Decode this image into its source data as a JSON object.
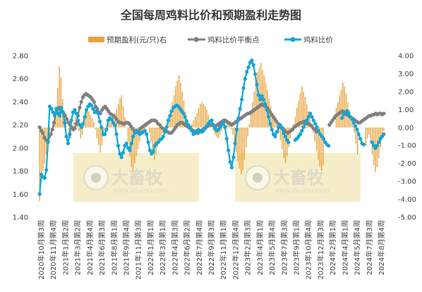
{
  "chart_data": {
    "type": "line",
    "title": "全国每周鸡料比价和预期盈利走势图",
    "watermark": {
      "brand": "大畜牧",
      "url": "www.dxumu.com"
    },
    "y_left": {
      "min": 1.4,
      "max": 2.8,
      "step": 0.2,
      "tick_labels": [
        "1.40",
        "1.60",
        "1.80",
        "2.00",
        "2.20",
        "2.40",
        "2.60",
        "2.80"
      ]
    },
    "y_right": {
      "min": -5.0,
      "max": 4.0,
      "step": 1.0,
      "tick_labels": [
        "-5.00",
        "-4.00",
        "-3.00",
        "-2.00",
        "-1.00",
        "0.00",
        "1.00",
        "2.00",
        "3.00",
        "4.00"
      ]
    },
    "x_labels": [
      "2020年10月第3周",
      "2020年11月第4周",
      "2021年1月第2周",
      "2021年3月第2周",
      "2021年4月第4周",
      "2021年6月第3周",
      "2021年8月第1周",
      "2021年9月第4周",
      "2021年11月第3周",
      "2022年1月第1周",
      "2022年3月第1周",
      "2022年4月第3周",
      "2022年6月第2周",
      "2022年7月第4周",
      "2022年9月第3周",
      "2022年11月第1周",
      "2022年12月第4周",
      "2023年2月第3周",
      "2023年4月第1周",
      "2023年5月第4周",
      "2023年7月第3周",
      "2023年9月第1周",
      "2023年10月第4周",
      "2023年12月第3周",
      "2024年2月第1周",
      "2024年4月第1周",
      "2024年5月第4周",
      "2024年7月第3周",
      "2024年8月第4周"
    ],
    "series": [
      {
        "name": "预期盈利(元/只)右",
        "type": "bar",
        "axis": "right",
        "color": "#E8A33C",
        "values": [
          -4.1,
          -3.0,
          -2.4,
          -2.0,
          -1.5,
          -1.0,
          -0.8,
          -0.3,
          0.3,
          0.8,
          1.2,
          2.2,
          3.4,
          2.8,
          1.6,
          0.8,
          0.4,
          0.0,
          -0.4,
          -0.6,
          -0.2,
          0.3,
          0.6,
          0.4,
          -0.2,
          -0.6,
          -0.4,
          0.1,
          0.7,
          1.2,
          0.9,
          0.7,
          0.5,
          0.3,
          -0.1,
          -0.6,
          -1.0,
          -1.4,
          -1.0,
          -0.5,
          -0.2,
          0.1,
          0.3,
          0.4,
          0.5,
          0.6,
          0.8,
          1.0,
          1.3,
          1.6,
          1.8,
          1.2,
          0.6,
          0.0,
          -0.8,
          -1.6,
          -2.2,
          -2.4,
          -2.0,
          -1.6,
          -1.2,
          -0.8,
          -0.4,
          -0.2,
          -0.1,
          0.1,
          0.0,
          -0.3,
          -0.8,
          -1.4,
          -1.8,
          -1.5,
          -1.1,
          -0.8,
          -0.5,
          -0.3,
          -0.1,
          0.1,
          0.3,
          0.6,
          1.0,
          1.4,
          1.8,
          2.3,
          2.6,
          2.9,
          2.5,
          2.0,
          1.5,
          0.9,
          0.5,
          0.2,
          0.1,
          0.2,
          0.4,
          0.6,
          0.8,
          1.1,
          1.3,
          1.4,
          1.3,
          1.2,
          1.0,
          0.7,
          0.4,
          0.1,
          -0.2,
          -0.4,
          -0.5,
          -0.6,
          -0.4,
          -0.2,
          0.0,
          0.2,
          0.4,
          0.3,
          0.1,
          -0.1,
          -0.4,
          -0.8,
          -1.4,
          -1.9,
          -2.3,
          -2.6,
          -2.4,
          -1.8,
          -1.1,
          -0.5,
          0.2,
          0.8,
          1.4,
          2.0,
          2.6,
          3.1,
          3.3,
          3.6,
          3.2,
          2.9,
          2.5,
          2.1,
          1.6,
          1.2,
          0.8,
          0.4,
          0.2,
          0.0,
          -0.3,
          -0.7,
          -1.2,
          -1.7,
          -2.0,
          -1.6,
          -1.1,
          -0.6,
          -0.2,
          0.2,
          0.6,
          1.1,
          1.5,
          1.9,
          2.3,
          2.0,
          1.7,
          1.3,
          0.9,
          0.5,
          0.1,
          -0.3,
          -0.8,
          -1.3,
          -1.8,
          -2.2,
          -2.4,
          -2.1,
          -1.6,
          -1.1,
          -0.6,
          -0.2,
          0.2,
          0.5,
          0.8,
          1.1,
          1.4,
          1.8,
          2.1,
          2.5,
          2.3,
          1.9,
          1.4,
          1.0,
          0.6,
          0.2,
          -0.3,
          -0.9,
          -1.5,
          -2.0,
          -2.3,
          -2.0,
          -1.5,
          -1.0,
          -0.6,
          -0.4,
          -0.8,
          -1.5,
          -2.1,
          -2.5,
          -2.2,
          -1.7,
          -1.1,
          -0.6,
          -0.2
        ],
        "gaps": [
          [
            174,
            180
          ],
          [
            195,
            198
          ]
        ]
      },
      {
        "name": "鸡料比价平衡点",
        "type": "line",
        "axis": "left",
        "color": "#808080",
        "values": [
          2.18,
          2.15,
          2.13,
          2.09,
          2.07,
          2.06,
          2.1,
          2.12,
          2.16,
          2.22,
          2.3,
          2.33,
          2.35,
          2.34,
          2.32,
          2.3,
          2.28,
          2.25,
          2.22,
          2.2,
          2.18,
          2.16,
          2.17,
          2.21,
          2.28,
          2.35,
          2.4,
          2.44,
          2.46,
          2.47,
          2.46,
          2.45,
          2.44,
          2.42,
          2.4,
          2.36,
          2.34,
          2.31,
          2.3,
          2.33,
          2.35,
          2.36,
          2.34,
          2.32,
          2.3,
          2.29,
          2.28,
          2.27,
          2.25,
          2.23,
          2.22,
          2.22,
          2.21,
          2.21,
          2.22,
          2.22,
          2.21,
          2.19,
          2.17,
          2.15,
          2.14,
          2.14,
          2.15,
          2.17,
          2.18,
          2.19,
          2.2,
          2.21,
          2.22,
          2.23,
          2.24,
          2.24,
          2.24,
          2.23,
          2.21,
          2.2,
          2.18,
          2.17,
          2.16,
          2.15,
          2.14,
          2.13,
          2.13,
          2.14,
          2.16,
          2.18,
          2.2,
          2.21,
          2.22,
          2.22,
          2.21,
          2.2,
          2.19,
          2.18,
          2.17,
          2.16,
          2.15,
          2.14,
          2.13,
          2.13,
          2.14,
          2.15,
          2.16,
          2.17,
          2.18,
          2.19,
          2.2,
          2.2,
          2.2,
          2.19,
          2.19,
          2.2,
          2.21,
          2.22,
          2.23,
          2.24,
          2.24,
          2.23,
          2.22,
          2.21,
          2.2,
          2.21,
          2.22,
          2.23,
          2.24,
          2.25,
          2.26,
          2.27,
          2.28,
          2.29,
          2.3,
          2.3,
          2.31,
          2.32,
          2.33,
          2.34,
          2.35,
          2.36,
          2.37,
          2.38,
          2.37,
          2.36,
          2.35,
          2.33,
          2.31,
          2.29,
          2.27,
          2.25,
          2.23,
          2.21,
          2.2,
          2.18,
          2.17,
          2.15,
          2.14,
          2.13,
          2.14,
          2.15,
          2.16,
          2.18,
          2.19,
          2.2,
          2.21,
          2.22,
          2.22,
          2.23,
          2.23,
          2.22,
          2.21,
          2.2,
          2.19,
          2.17,
          2.16,
          2.14,
          2.13,
          2.12,
          2.11,
          2.12,
          2.14,
          2.16,
          2.18,
          2.2,
          2.22,
          2.24,
          2.26,
          2.28,
          2.29,
          2.3,
          2.31,
          2.32,
          2.31,
          2.3,
          2.29,
          2.28,
          2.27,
          2.26,
          2.25,
          2.24,
          2.23,
          2.22,
          2.22,
          2.23,
          2.24,
          2.25,
          2.26,
          2.27,
          2.28,
          2.28,
          2.29,
          2.29,
          2.3,
          2.29,
          2.3,
          2.3,
          2.29,
          2.3
        ],
        "gaps": [
          [
            174,
            180
          ]
        ]
      },
      {
        "name": "鸡料比价",
        "type": "line",
        "axis": "left",
        "color": "#14A5D6",
        "values": [
          1.6,
          1.77,
          1.75,
          1.74,
          1.81,
          2.05,
          2.36,
          2.34,
          2.31,
          2.28,
          2.34,
          2.3,
          2.28,
          2.35,
          2.31,
          2.22,
          2.1,
          2.04,
          2.12,
          2.24,
          2.31,
          2.33,
          2.3,
          2.24,
          2.2,
          2.18,
          2.21,
          2.27,
          2.33,
          2.36,
          2.38,
          2.37,
          2.34,
          2.31,
          2.32,
          2.3,
          2.23,
          2.18,
          2.12,
          2.12,
          2.16,
          2.24,
          2.26,
          2.25,
          2.22,
          2.2,
          2.12,
          2.02,
          1.95,
          1.92,
          1.96,
          2.02,
          2.04,
          2.0,
          1.98,
          2.04,
          2.1,
          2.13,
          2.15,
          2.13,
          2.12,
          2.13,
          2.14,
          2.15,
          2.12,
          2.05,
          1.98,
          1.95,
          1.97,
          2.02,
          2.04,
          2.05,
          2.07,
          2.08,
          2.1,
          2.14,
          2.18,
          2.24,
          2.28,
          2.32,
          2.35,
          2.36,
          2.37,
          2.36,
          2.34,
          2.32,
          2.3,
          2.27,
          2.23,
          2.2,
          2.18,
          2.15,
          2.12,
          2.13,
          2.15,
          2.16,
          2.15,
          2.14,
          2.15,
          2.17,
          2.19,
          2.21,
          2.23,
          2.24,
          2.2,
          2.17,
          2.15,
          2.16,
          2.18,
          2.2,
          2.22,
          2.18,
          2.08,
          1.98,
          1.88,
          1.83,
          1.92,
          2.04,
          2.16,
          2.26,
          2.34,
          2.42,
          2.52,
          2.6,
          2.66,
          2.7,
          2.74,
          2.76,
          2.72,
          2.64,
          2.55,
          2.46,
          2.42,
          2.45,
          2.42,
          2.38,
          2.33,
          2.27,
          2.21,
          2.16,
          2.12,
          2.1,
          2.14,
          2.18,
          2.2,
          2.17,
          2.13,
          2.1,
          2.07,
          2.05,
          2.04,
          2.05,
          2.06,
          2.07,
          2.08,
          2.1,
          2.12,
          2.15,
          2.18,
          2.21,
          2.24,
          2.27,
          2.3,
          2.27,
          2.24,
          2.21,
          2.18,
          2.15,
          2.12,
          2.1,
          2.08,
          2.05,
          2.03,
          2.02,
          2.04,
          2.07,
          2.1,
          2.14,
          2.17,
          2.2,
          2.23,
          2.26,
          2.29,
          2.31,
          2.32,
          2.3,
          2.27,
          2.25,
          2.22,
          2.19,
          2.16,
          2.12,
          2.08,
          2.04,
          2.03,
          2.05,
          2.07,
          2.1,
          2.08,
          2.05,
          2.02,
          2.0,
          2.02,
          2.05,
          2.08,
          2.1,
          2.12
        ],
        "gaps": [
          [
            150,
            152
          ],
          [
            174,
            180
          ],
          [
            195,
            198
          ]
        ]
      }
    ],
    "legend_position": "top-center",
    "grid": false
  }
}
